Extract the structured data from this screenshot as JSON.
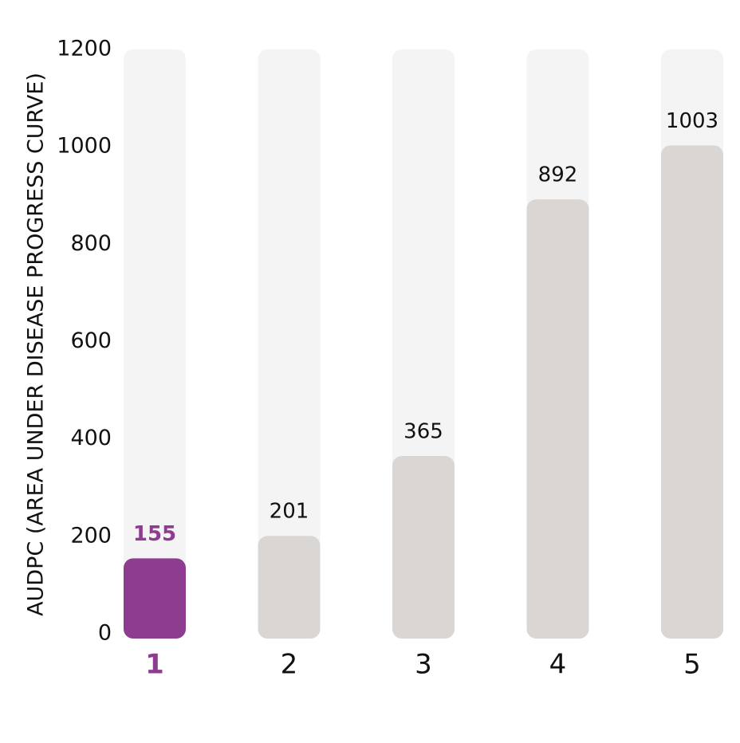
{
  "chart_data": {
    "type": "bar",
    "y_label": "AUDPC (AREA UNDER DISEASE PROGRESS CURVE)",
    "categories": [
      "1",
      "2",
      "3",
      "4",
      "5"
    ],
    "values": [
      155,
      201,
      365,
      892,
      1003
    ],
    "colors": [
      "#8e3c8f",
      "#d9d6d4",
      "#d9d6d4",
      "#d9d6d4",
      "#d9d6d4"
    ],
    "label_colors": [
      "#8e3c8f",
      "#111111",
      "#111111",
      "#111111",
      "#111111"
    ],
    "track_color": "#f4f4f4",
    "ylim": [
      0,
      1200
    ],
    "yticks": [
      0,
      200,
      400,
      600,
      800,
      1000,
      1200
    ],
    "grid": false
  }
}
